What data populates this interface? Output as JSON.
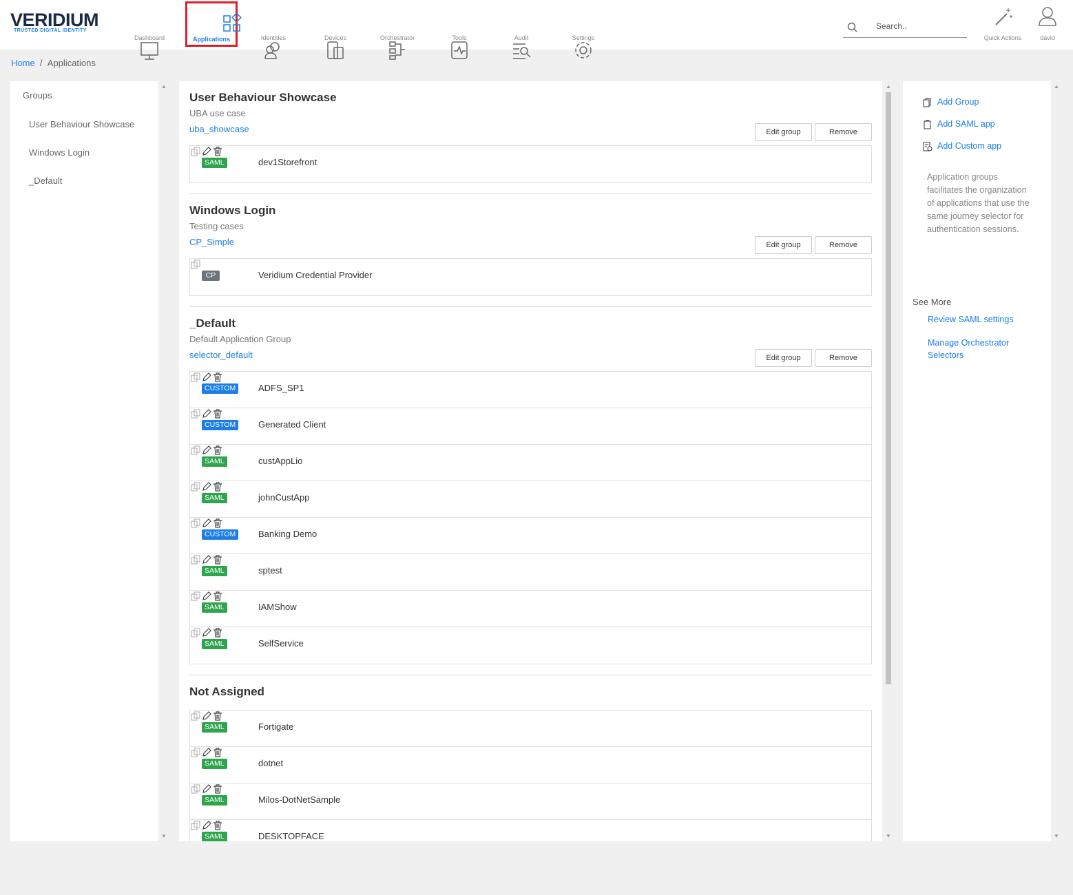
{
  "header": {
    "logo": "VERIDIUM",
    "tagline": "TRUSTED DIGITAL IDENTITY",
    "nav": [
      "Dashboard",
      "Applications",
      "Identities",
      "Devices",
      "Orchestrator",
      "Tools",
      "Audit",
      "Settings"
    ],
    "active_index": 1,
    "search_placeholder": "Search..",
    "quick_actions": "Quick Actions",
    "user": "david"
  },
  "breadcrumb": {
    "home": "Home",
    "separator": "/",
    "current": "Applications"
  },
  "sidebar": {
    "title": "Groups",
    "items": [
      "User Behaviour Showcase",
      "Windows Login",
      "_Default"
    ]
  },
  "buttons": {
    "edit": "Edit group",
    "remove": "Remove"
  },
  "groups": [
    {
      "name": "User Behaviour Showcase",
      "description": "UBA use case",
      "selector": "uba_showcase",
      "apps": [
        {
          "tag": "SAML",
          "name": "dev1Storefront"
        }
      ]
    },
    {
      "name": "Windows Login",
      "description": "Testing cases",
      "selector": "CP_Simple",
      "apps": [
        {
          "tag": "CP",
          "name": "Veridium Credential Provider",
          "readonly": true
        }
      ]
    },
    {
      "name": "_Default",
      "description": "Default Application Group",
      "selector": "selector_default",
      "apps": [
        {
          "tag": "CUSTOM",
          "name": "ADFS_SP1"
        },
        {
          "tag": "CUSTOM",
          "name": "Generated Client"
        },
        {
          "tag": "SAML",
          "name": "custAppLio"
        },
        {
          "tag": "SAML",
          "name": "johnCustApp"
        },
        {
          "tag": "CUSTOM",
          "name": "Banking Demo"
        },
        {
          "tag": "SAML",
          "name": "sptest"
        },
        {
          "tag": "SAML",
          "name": "IAMShow"
        },
        {
          "tag": "SAML",
          "name": "SelfService"
        }
      ]
    }
  ],
  "not_assigned": {
    "title": "Not Assigned",
    "apps": [
      {
        "tag": "SAML",
        "name": "Fortigate"
      },
      {
        "tag": "SAML",
        "name": "dotnet"
      },
      {
        "tag": "SAML",
        "name": "Milos-DotNetSample"
      },
      {
        "tag": "SAML",
        "name": "DESKTOPFACE"
      }
    ]
  },
  "tag_colors": {
    "SAML": "#2ea44f",
    "CUSTOM": "#1a7ee6",
    "CP": "#6c757d"
  },
  "actions": {
    "items": [
      "Add Group",
      "Add SAML app",
      "Add Custom app"
    ],
    "description": "Application groups facilitates the organization of applications that use the same journey selector for authentication sessions.",
    "see_more": "See More",
    "links": [
      "Review SAML settings",
      "Manage Orchestrator Selectors"
    ]
  }
}
